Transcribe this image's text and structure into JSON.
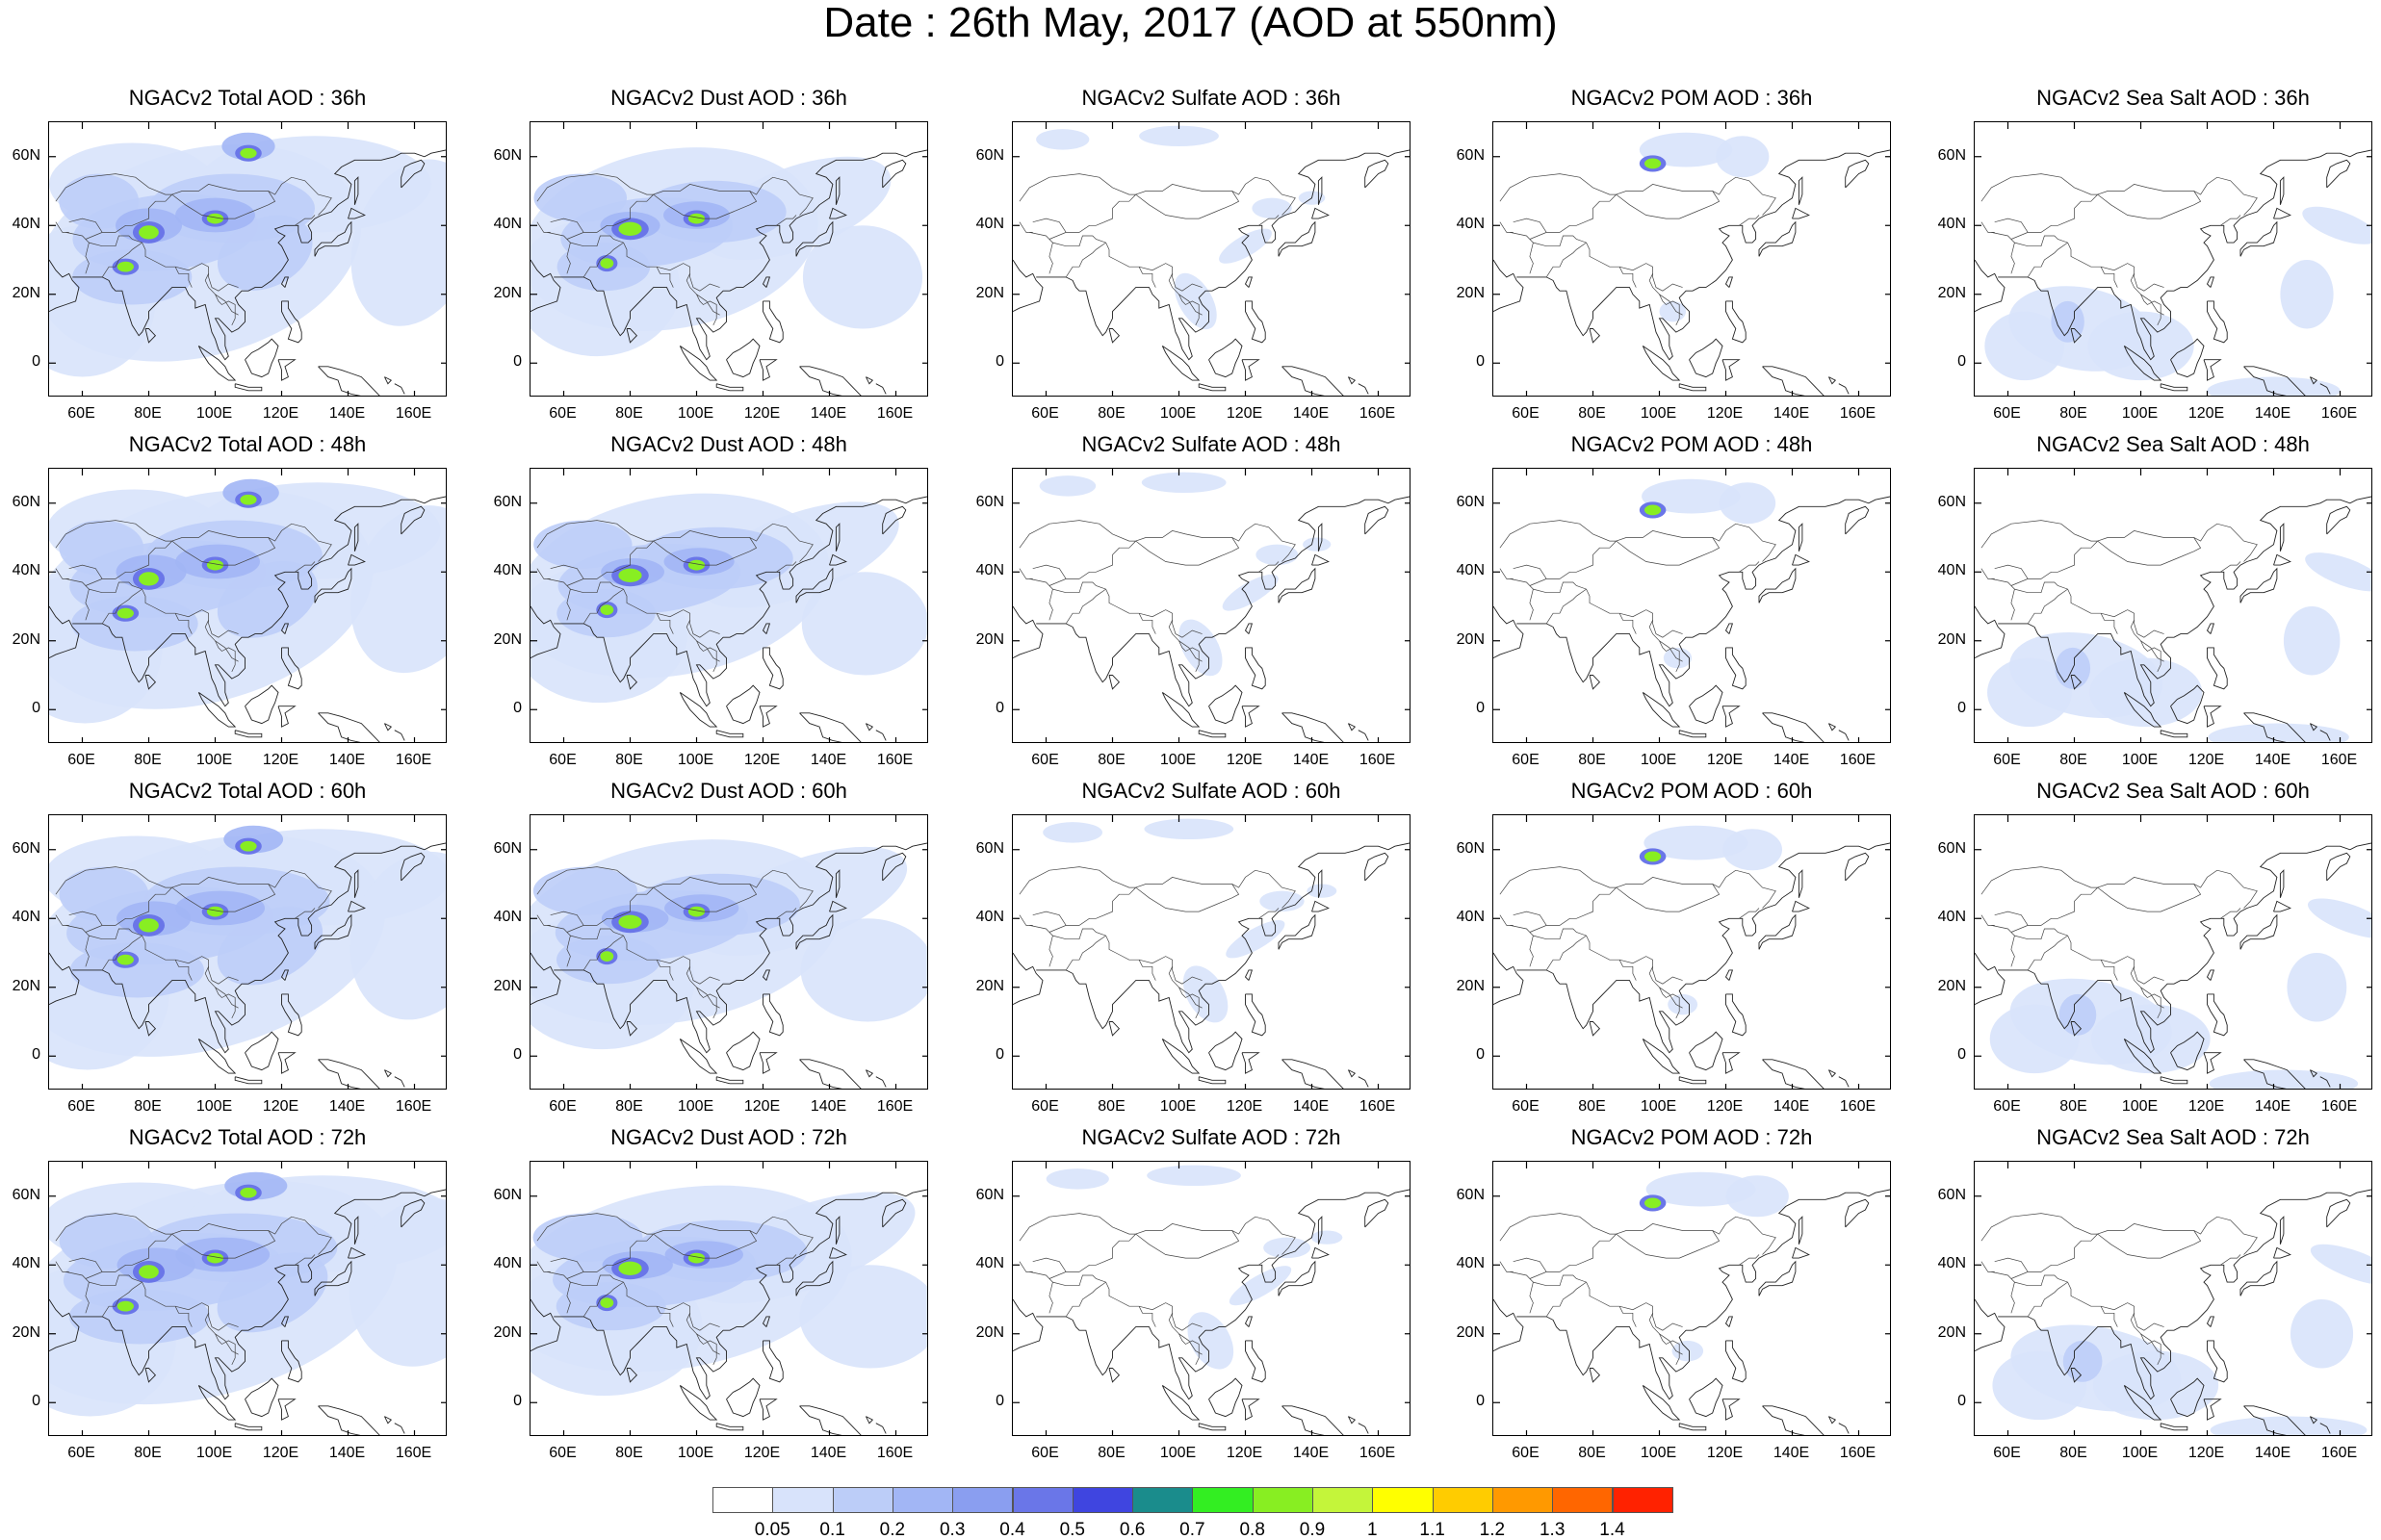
{
  "title": "Date : 26th May, 2017 (AOD at 550nm)",
  "panels": [
    [
      "NGACv2 Total AOD : 36h",
      "NGACv2 Dust AOD : 36h",
      "NGACv2 Sulfate AOD : 36h",
      "NGACv2 POM AOD : 36h",
      "NGACv2 Sea Salt AOD : 36h"
    ],
    [
      "NGACv2 Total AOD : 48h",
      "NGACv2 Dust AOD : 48h",
      "NGACv2 Sulfate AOD : 48h",
      "NGACv2 POM AOD : 48h",
      "NGACv2 Sea Salt AOD : 48h"
    ],
    [
      "NGACv2 Total AOD : 60h",
      "NGACv2 Dust AOD : 60h",
      "NGACv2 Sulfate AOD : 60h",
      "NGACv2 POM AOD : 60h",
      "NGACv2 Sea Salt AOD : 60h"
    ],
    [
      "NGACv2 Total AOD : 72h",
      "NGACv2 Dust AOD : 72h",
      "NGACv2 Sulfate AOD : 72h",
      "NGACv2 POM AOD : 72h",
      "NGACv2 Sea Salt  AOD : 72h"
    ]
  ],
  "map_extent": {
    "lon_min": 50,
    "lon_max": 170,
    "lat_min": -10,
    "lat_max": 70
  },
  "x_ticks": [
    "60E",
    "80E",
    "100E",
    "120E",
    "140E",
    "160E"
  ],
  "x_tick_lons": [
    60,
    80,
    100,
    120,
    140,
    160
  ],
  "y_ticks": [
    "60N",
    "40N",
    "20N",
    "0"
  ],
  "y_tick_lats": [
    60,
    40,
    20,
    0
  ],
  "colorbar": {
    "colors": [
      "#ffffff",
      "#d8e3fb",
      "#bccdf8",
      "#a2b6f5",
      "#8a9ef0",
      "#6a76e8",
      "#3f45e0",
      "#1a8c8c",
      "#33ee22",
      "#88ee22",
      "#c4f53a",
      "#ffff00",
      "#ffcc00",
      "#ff9900",
      "#ff6600",
      "#ff2200"
    ],
    "labels": [
      "0.05",
      "0.1",
      "0.2",
      "0.3",
      "0.4",
      "0.5",
      "0.6",
      "0.7",
      "0.8",
      "0.9",
      "1",
      "1.1",
      "1.2",
      "1.3",
      "1.4"
    ]
  }
}
